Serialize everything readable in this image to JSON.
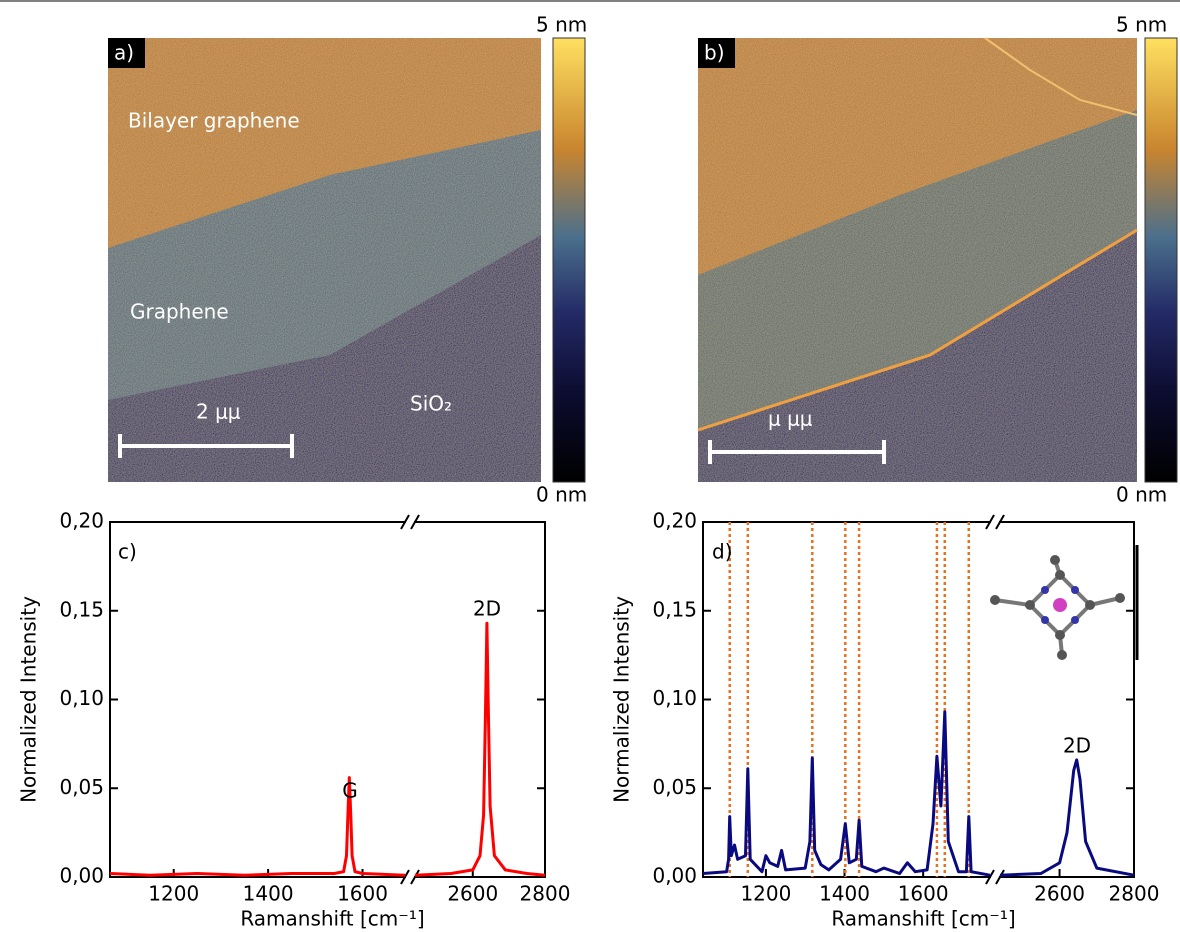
{
  "chart_data": [
    {
      "type": "afm_image",
      "panel_label": "a)",
      "annotations": [
        "Bilayer graphene",
        "Graphene",
        "SiO₂"
      ],
      "scale_bar_label": "2 μμ",
      "colorbar": {
        "ticks": [
          {
            "value": 0,
            "label": "0 nm"
          },
          {
            "value": 5,
            "label": "5 nm"
          }
        ]
      }
    },
    {
      "type": "afm_image",
      "panel_label": "b)",
      "annotations": [],
      "scale_bar_label": "μ μμ",
      "colorbar": {
        "ticks": [
          {
            "value": 0,
            "label": "0 nm"
          },
          {
            "value": 5,
            "label": "5 nm"
          }
        ]
      }
    },
    {
      "type": "line",
      "panel_label": "c)",
      "x_label": "Ramanshift [cm⁻¹]",
      "y_label": "Normalized Intensity",
      "xlim_segments": [
        [
          1065,
          1690
        ],
        [
          2440,
          2800
        ]
      ],
      "xticks": [
        1200,
        1400,
        1600,
        2600,
        2800
      ],
      "ylim": [
        0,
        0.2
      ],
      "yticks": [
        {
          "value": 0,
          "label": "0,00"
        },
        {
          "value": 0.05,
          "label": "0,05"
        },
        {
          "value": 0.1,
          "label": "0,10"
        },
        {
          "value": 0.15,
          "label": "0,15"
        },
        {
          "value": 0.2,
          "label": "0,20"
        }
      ],
      "color": "#ff0000",
      "annotations": [
        "G",
        "2D"
      ],
      "x": [
        1065,
        1150,
        1250,
        1350,
        1450,
        1540,
        1560,
        1566,
        1569,
        1572,
        1575,
        1578,
        1584,
        1600,
        1690,
        2440,
        2540,
        2600,
        2620,
        2630,
        2635,
        2639,
        2643,
        2648,
        2660,
        2690,
        2750,
        2800
      ],
      "values": [
        0.002,
        0.001,
        0.002,
        0.001,
        0.002,
        0.002,
        0.003,
        0.012,
        0.035,
        0.056,
        0.036,
        0.012,
        0.003,
        0.002,
        0.001,
        0.001,
        0.002,
        0.004,
        0.012,
        0.035,
        0.09,
        0.143,
        0.095,
        0.04,
        0.012,
        0.004,
        0.002,
        0.001
      ]
    },
    {
      "type": "line",
      "panel_label": "d)",
      "x_label": "Ramanshift [cm⁻¹]",
      "y_label": "Normalized Intensity",
      "xlim_segments": [
        [
          1040,
          1770
        ],
        [
          2440,
          2800
        ]
      ],
      "xticks": [
        1200,
        1400,
        1600,
        2600,
        2800
      ],
      "ylim": [
        0,
        0.2
      ],
      "yticks": [
        {
          "value": 0,
          "label": "0,00"
        },
        {
          "value": 0.05,
          "label": "0,05"
        },
        {
          "value": 0.1,
          "label": "0,10"
        },
        {
          "value": 0.15,
          "label": "0,15"
        },
        {
          "value": 0.2,
          "label": "0,20"
        }
      ],
      "color": "#0a0a80",
      "annotations": [
        "2D"
      ],
      "reference_lines": {
        "color": "#e8701e",
        "x": [
          1108,
          1154,
          1318,
          1402,
          1437,
          1635,
          1655,
          1716
        ]
      },
      "x": [
        1040,
        1100,
        1105,
        1108,
        1112,
        1120,
        1128,
        1148,
        1154,
        1160,
        1190,
        1200,
        1210,
        1230,
        1240,
        1250,
        1300,
        1312,
        1318,
        1324,
        1340,
        1360,
        1390,
        1402,
        1412,
        1430,
        1437,
        1444,
        1480,
        1500,
        1540,
        1560,
        1580,
        1610,
        1625,
        1635,
        1645,
        1655,
        1664,
        1690,
        1710,
        1716,
        1722,
        1770,
        2440,
        2550,
        2600,
        2620,
        2638,
        2646,
        2655,
        2670,
        2700,
        2800
      ],
      "values": [
        0.002,
        0.003,
        0.01,
        0.034,
        0.012,
        0.018,
        0.01,
        0.012,
        0.061,
        0.01,
        0.003,
        0.012,
        0.008,
        0.006,
        0.015,
        0.004,
        0.005,
        0.02,
        0.067,
        0.015,
        0.007,
        0.004,
        0.01,
        0.03,
        0.008,
        0.01,
        0.032,
        0.006,
        0.003,
        0.005,
        0.002,
        0.008,
        0.003,
        0.004,
        0.03,
        0.068,
        0.04,
        0.093,
        0.02,
        0.003,
        0.003,
        0.034,
        0.003,
        0.001,
        0.001,
        0.002,
        0.008,
        0.025,
        0.06,
        0.066,
        0.055,
        0.02,
        0.005,
        0.001
      ]
    }
  ]
}
